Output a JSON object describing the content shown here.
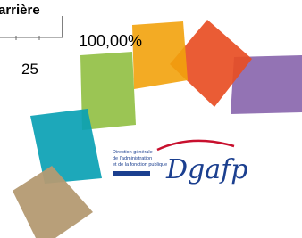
{
  "header": {
    "title_fragment": "arrière"
  },
  "table": {
    "cell": "25",
    "percent": "100,00%"
  },
  "logo": {
    "lines": [
      "Direction générale",
      "de l'administration",
      "et de la fonction publique"
    ],
    "acronym": "Dgafp"
  }
}
